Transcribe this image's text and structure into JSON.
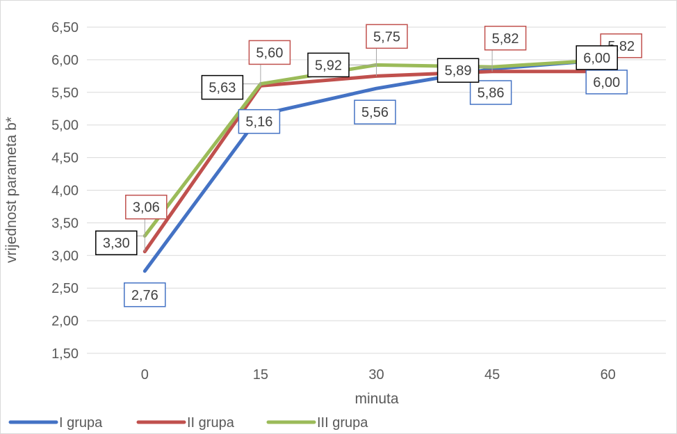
{
  "chart_data": {
    "type": "line",
    "xlabel": "minuta",
    "ylabel": "vrijednost parameta b*",
    "categories": [
      "0",
      "15",
      "30",
      "45",
      "60"
    ],
    "ylim": [
      1.5,
      6.5
    ],
    "ytick_step": 0.5,
    "yticks": [
      "1,50",
      "2,00",
      "2,50",
      "3,00",
      "3,50",
      "4,00",
      "4,50",
      "5,00",
      "5,50",
      "6,00",
      "6,50"
    ],
    "grid": true,
    "legend": "bottom-left",
    "series": [
      {
        "name": "I grupa",
        "color": "#4472C4",
        "values": [
          2.76,
          5.16,
          5.56,
          5.86,
          6.0
        ],
        "labels": [
          "2,76",
          "5,16",
          "5,56",
          "5,86",
          "6,00"
        ]
      },
      {
        "name": "II grupa",
        "color": "#C0504D",
        "values": [
          3.06,
          5.6,
          5.75,
          5.82,
          5.82
        ],
        "labels": [
          "3,06",
          "5,60",
          "5,75",
          "5,82",
          "5,82"
        ]
      },
      {
        "name": "III grupa",
        "color": "#9BBB59",
        "values": [
          3.3,
          5.63,
          5.92,
          5.89,
          6.0
        ],
        "labels": [
          "3,30",
          "5,63",
          "5,92",
          "5,89",
          "6,00"
        ]
      }
    ]
  }
}
